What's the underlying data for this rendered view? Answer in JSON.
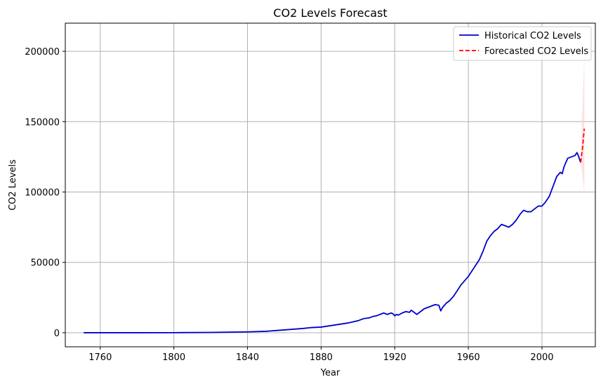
{
  "chart_data": {
    "type": "line",
    "title": "CO2 Levels Forecast",
    "xlabel": "Year",
    "ylabel": "CO2 Levels",
    "xlim": [
      1741,
      2029
    ],
    "ylim": [
      -10000,
      220000
    ],
    "xticks": [
      1760,
      1800,
      1840,
      1880,
      1920,
      1960,
      2000
    ],
    "yticks": [
      0,
      50000,
      100000,
      150000,
      200000
    ],
    "grid": true,
    "legend_position": "top-right",
    "colors": {
      "historical": "#0000cc",
      "forecast": "#ff0000",
      "band": "#ffcccc"
    },
    "series": [
      {
        "name": "Historical CO2 Levels",
        "style": "solid",
        "x": [
          1751,
          1760,
          1780,
          1800,
          1820,
          1840,
          1850,
          1855,
          1860,
          1865,
          1870,
          1875,
          1880,
          1885,
          1890,
          1895,
          1900,
          1903,
          1906,
          1908,
          1910,
          1912,
          1914,
          1916,
          1918,
          1919,
          1920,
          1921,
          1922,
          1924,
          1926,
          1928,
          1929,
          1930,
          1932,
          1934,
          1936,
          1938,
          1940,
          1942,
          1944,
          1945,
          1946,
          1948,
          1950,
          1952,
          1954,
          1956,
          1958,
          1960,
          1962,
          1964,
          1966,
          1968,
          1970,
          1972,
          1974,
          1976,
          1978,
          1980,
          1982,
          1984,
          1986,
          1988,
          1990,
          1992,
          1994,
          1996,
          1998,
          2000,
          2002,
          2004,
          2006,
          2008,
          2010,
          2011,
          2012,
          2014,
          2016,
          2018,
          2019,
          2020,
          2021
        ],
        "y": [
          0,
          0,
          0,
          50,
          200,
          600,
          1000,
          1500,
          2000,
          2500,
          3000,
          3700,
          4000,
          5000,
          6000,
          7000,
          8500,
          10000,
          10500,
          11500,
          12000,
          13000,
          14000,
          13000,
          14000,
          13500,
          12000,
          13000,
          12500,
          14000,
          15000,
          14500,
          16000,
          15000,
          13000,
          15000,
          17000,
          18000,
          19000,
          20000,
          19500,
          15500,
          18000,
          21000,
          23000,
          26000,
          30000,
          34000,
          37000,
          40000,
          44000,
          48000,
          52000,
          58000,
          65000,
          69000,
          72000,
          74000,
          77000,
          76000,
          75000,
          77000,
          80000,
          84000,
          87000,
          86000,
          86000,
          88000,
          90000,
          90000,
          93000,
          97000,
          104000,
          111000,
          114000,
          113000,
          118000,
          124000,
          125000,
          126000,
          128000,
          125000,
          121000
        ]
      },
      {
        "name": "Forecasted CO2 Levels",
        "style": "dashed",
        "x": [
          2021,
          2022,
          2023
        ],
        "y": [
          121000,
          131000,
          145000
        ],
        "band_lower": [
          121000,
          112000,
          99000
        ],
        "band_upper": [
          121000,
          160000,
          197000
        ]
      }
    ]
  }
}
